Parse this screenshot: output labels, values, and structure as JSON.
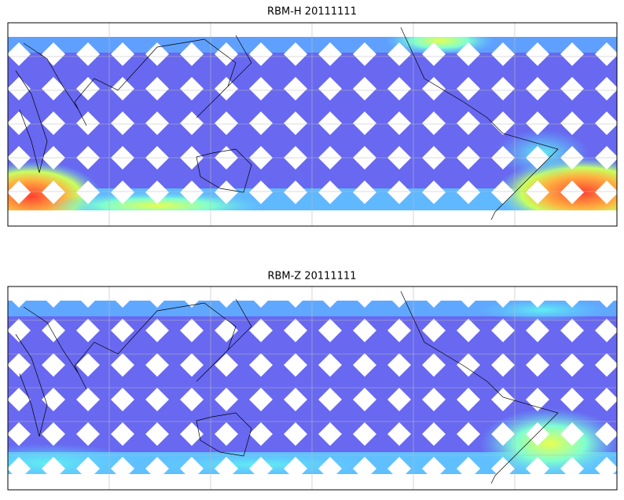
{
  "panels": [
    {
      "title": "RBM-H 20111111"
    },
    {
      "title": "RBM-Z 20111111"
    }
  ]
}
